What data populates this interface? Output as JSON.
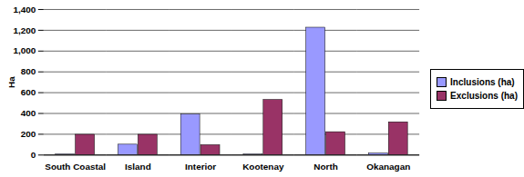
{
  "chart_data": {
    "type": "bar",
    "categories": [
      "South Coastal",
      "Island",
      "Interior",
      "Kootenay",
      "North",
      "Okanagan"
    ],
    "series": [
      {
        "name": "Inclusions (ha)",
        "color": "#9999ff",
        "values": [
          5,
          100,
          390,
          5,
          1225,
          15
        ]
      },
      {
        "name": "Exclusions (ha)",
        "color": "#993366",
        "values": [
          195,
          195,
          95,
          530,
          220,
          315
        ]
      }
    ],
    "y_label": "Ha",
    "ylim": [
      0,
      1400
    ],
    "yticks": [
      0,
      200,
      400,
      600,
      800,
      1000,
      1200,
      1400
    ],
    "grid": true,
    "legend": "right"
  }
}
